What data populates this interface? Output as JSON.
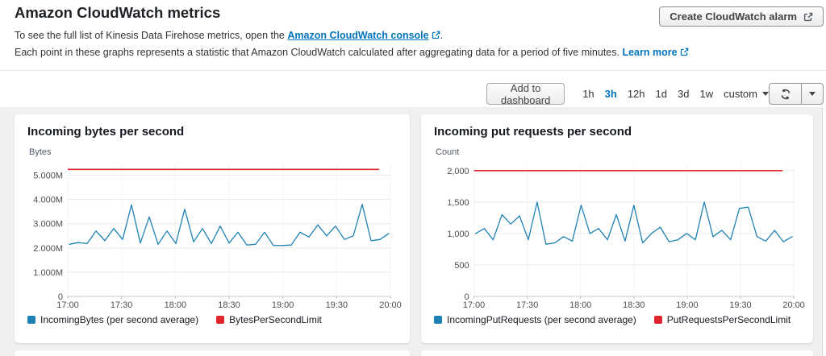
{
  "header": {
    "title": "Amazon CloudWatch metrics",
    "intro_prefix": "To see the full list of Kinesis Data Firehose metrics, open the ",
    "console_link": "Amazon CloudWatch console",
    "intro_suffix": ".",
    "period_text": "Each point in these graphs represents a statistic that Amazon CloudWatch calculated after aggregating data for a period of five minutes.",
    "learn_more_link": "Learn more",
    "create_alarm_button": "Create CloudWatch alarm"
  },
  "toolbar": {
    "add_to_dashboard": "Add to dashboard",
    "ranges": [
      {
        "label": "1h",
        "selected": false
      },
      {
        "label": "3h",
        "selected": true
      },
      {
        "label": "12h",
        "selected": false
      },
      {
        "label": "1d",
        "selected": false
      },
      {
        "label": "3d",
        "selected": false
      },
      {
        "label": "1w",
        "selected": false
      }
    ],
    "custom_label": "custom"
  },
  "icons": {
    "external_link": "external-link-icon",
    "refresh": "refresh-icon",
    "caret_down": "caret-down-icon"
  },
  "colors": {
    "link_blue": "#0073bb",
    "selected_range_blue": "#0073bb",
    "series_blue": "#1f82b5",
    "limit_red": "#e0262c",
    "page_bg": "#f0f0f1",
    "panel_bg": "#ffffff"
  },
  "chart_data": [
    {
      "type": "line",
      "title": "Incoming bytes per second",
      "ylabel": "Bytes",
      "xlabel": "",
      "x_tick_labels": [
        "17:00",
        "17:30",
        "18:00",
        "18:30",
        "19:00",
        "19:30",
        "20:00"
      ],
      "point_interval_minutes": 5,
      "x_range": [
        "17:00",
        "20:00"
      ],
      "ylim": [
        0,
        5.45
      ],
      "y_unit": "millions of bytes",
      "y_ticks": [
        {
          "label": "5.000M",
          "value": 5
        },
        {
          "label": "4.000M",
          "value": 4
        },
        {
          "label": "3.000M",
          "value": 3
        },
        {
          "label": "2.000M",
          "value": 2
        },
        {
          "label": "1.000M",
          "value": 1
        },
        {
          "label": "0",
          "value": 0
        }
      ],
      "grid": true,
      "legend_position": "bottom",
      "series": [
        {
          "name": "IncomingBytes (per second average)",
          "type": "line",
          "color": "#1f82b5",
          "values": [
            2.15,
            2.22,
            2.18,
            2.7,
            2.3,
            2.8,
            2.35,
            3.78,
            2.2,
            3.28,
            2.15,
            2.7,
            2.18,
            3.6,
            2.25,
            2.8,
            2.18,
            2.9,
            2.2,
            2.65,
            2.12,
            2.15,
            2.65,
            2.1,
            2.1,
            2.12,
            2.65,
            2.45,
            2.95,
            2.5,
            2.9,
            2.35,
            2.5,
            3.8,
            2.3,
            2.35,
            2.6
          ]
        },
        {
          "name": "BytesPerSecondLimit",
          "type": "limit",
          "color": "#e0262c",
          "value": 5.24
        }
      ]
    },
    {
      "type": "line",
      "title": "Incoming put requests per second",
      "ylabel": "Count",
      "xlabel": "",
      "x_tick_labels": [
        "17:00",
        "17:30",
        "18:00",
        "18:30",
        "19:00",
        "19:30",
        "20:00"
      ],
      "point_interval_minutes": 5,
      "x_range": [
        "17:00",
        "20:00"
      ],
      "ylim": [
        0,
        2100
      ],
      "y_unit": "count",
      "y_ticks": [
        {
          "label": "2,000",
          "value": 2000
        },
        {
          "label": "1,500",
          "value": 1500
        },
        {
          "label": "1,000",
          "value": 1000
        },
        {
          "label": "500",
          "value": 500
        },
        {
          "label": "0",
          "value": 0
        }
      ],
      "grid": true,
      "legend_position": "bottom",
      "series": [
        {
          "name": "IncomingPutRequests (per second average)",
          "type": "line",
          "color": "#1f82b5",
          "values": [
            1000,
            1080,
            900,
            1300,
            1150,
            1280,
            900,
            1500,
            830,
            850,
            950,
            880,
            1450,
            1000,
            1080,
            900,
            1300,
            880,
            1450,
            850,
            1000,
            1100,
            870,
            900,
            1000,
            900,
            1500,
            950,
            1050,
            900,
            1400,
            1420,
            950,
            880,
            1050,
            870,
            950
          ]
        },
        {
          "name": "PutRequestsPerSecondLimit",
          "type": "limit",
          "color": "#e0262c",
          "value": 2000
        }
      ]
    }
  ]
}
